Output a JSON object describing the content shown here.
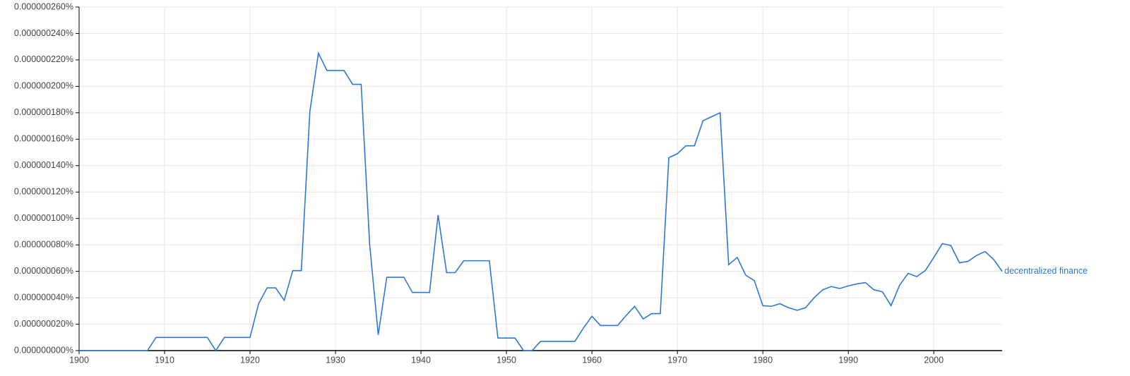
{
  "chart_data": {
    "type": "line",
    "x": [
      1900,
      1901,
      1902,
      1903,
      1904,
      1905,
      1906,
      1907,
      1908,
      1909,
      1910,
      1911,
      1912,
      1913,
      1914,
      1915,
      1916,
      1917,
      1918,
      1919,
      1920,
      1921,
      1922,
      1923,
      1924,
      1925,
      1926,
      1927,
      1928,
      1929,
      1930,
      1931,
      1932,
      1933,
      1934,
      1935,
      1936,
      1937,
      1938,
      1939,
      1940,
      1941,
      1942,
      1943,
      1944,
      1945,
      1946,
      1947,
      1948,
      1949,
      1950,
      1951,
      1952,
      1953,
      1954,
      1955,
      1956,
      1957,
      1958,
      1959,
      1960,
      1961,
      1962,
      1963,
      1964,
      1965,
      1966,
      1967,
      1968,
      1969,
      1970,
      1971,
      1972,
      1973,
      1974,
      1975,
      1976,
      1977,
      1978,
      1979,
      1980,
      1981,
      1982,
      1983,
      1984,
      1985,
      1986,
      1987,
      1988,
      1989,
      1990,
      1991,
      1992,
      1993,
      1994,
      1995,
      1996,
      1997,
      1998,
      1999,
      2000,
      2001,
      2002,
      2003,
      2004,
      2005,
      2006,
      2007,
      2008
    ],
    "series": [
      {
        "name": "decentralized finance",
        "color": "#2b78d8",
        "values": [
          0,
          0,
          0,
          0,
          0,
          0,
          0,
          0,
          0,
          1e-08,
          1e-08,
          1e-08,
          1e-08,
          1e-08,
          1e-08,
          1e-08,
          0,
          1e-08,
          1e-08,
          1e-08,
          1e-08,
          3.55e-08,
          4.75e-08,
          4.75e-08,
          3.8e-08,
          6.05e-08,
          6.05e-08,
          1.81e-07,
          2.25e-07,
          2.12e-07,
          2.12e-07,
          2.12e-07,
          2.015e-07,
          2.015e-07,
          8e-08,
          1.2e-08,
          5.55e-08,
          5.55e-08,
          5.55e-08,
          4.4e-08,
          4.4e-08,
          4.4e-08,
          1.025e-07,
          5.9e-08,
          5.9e-08,
          6.8e-08,
          6.8e-08,
          6.8e-08,
          6.8e-08,
          9.5e-09,
          9.5e-09,
          9.5e-09,
          0,
          0,
          7e-09,
          7e-09,
          7e-09,
          7e-09,
          7e-09,
          1.7e-08,
          2.6e-08,
          1.9e-08,
          1.9e-08,
          1.9e-08,
          2.65e-08,
          3.35e-08,
          2.4e-08,
          2.8e-08,
          2.8e-08,
          1.46e-07,
          1.49e-07,
          1.55e-07,
          1.55e-07,
          1.74e-07,
          1.77e-07,
          1.8e-07,
          6.5e-08,
          7.05e-08,
          5.7e-08,
          5.3e-08,
          3.4e-08,
          3.35e-08,
          3.55e-08,
          3.25e-08,
          3.05e-08,
          3.25e-08,
          4e-08,
          4.6e-08,
          4.85e-08,
          4.7e-08,
          4.9e-08,
          5.05e-08,
          5.15e-08,
          4.6e-08,
          4.45e-08,
          3.4e-08,
          4.95e-08,
          5.85e-08,
          5.6e-08,
          6.05e-08,
          7.05e-08,
          8.1e-08,
          7.95e-08,
          6.65e-08,
          6.75e-08,
          7.2e-08,
          7.5e-08,
          6.9e-08,
          6e-08
        ]
      }
    ],
    "xlim": [
      1900,
      2008
    ],
    "xticks": [
      1900,
      1910,
      1920,
      1930,
      1940,
      1950,
      1960,
      1970,
      1980,
      1990,
      2000
    ],
    "ylim": [
      0,
      2.6e-07
    ],
    "yticks": [
      {
        "value": 0,
        "label": "0.000000000%"
      },
      {
        "value": 2e-08,
        "label": "0.000000020%"
      },
      {
        "value": 4e-08,
        "label": "0.000000040%"
      },
      {
        "value": 6e-08,
        "label": "0.000000060%"
      },
      {
        "value": 8e-08,
        "label": "0.000000080%"
      },
      {
        "value": 1e-07,
        "label": "0.000000100%"
      },
      {
        "value": 1.2e-07,
        "label": "0.000000120%"
      },
      {
        "value": 1.4e-07,
        "label": "0.000000140%"
      },
      {
        "value": 1.6e-07,
        "label": "0.000000160%"
      },
      {
        "value": 1.8e-07,
        "label": "0.000000180%"
      },
      {
        "value": 2e-07,
        "label": "0.000000200%"
      },
      {
        "value": 2.2e-07,
        "label": "0.000000220%"
      },
      {
        "value": 2.4e-07,
        "label": "0.000000240%"
      },
      {
        "value": 2.6e-07,
        "label": "0.000000260%"
      }
    ],
    "grid": true
  }
}
